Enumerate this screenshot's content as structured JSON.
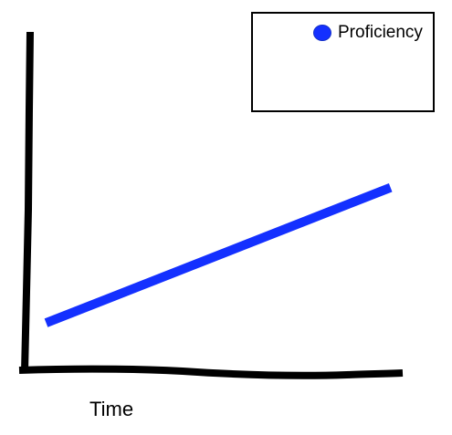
{
  "chart_data": {
    "type": "line",
    "title": "",
    "xlabel": "Time",
    "ylabel": "",
    "x_ticks": false,
    "y_ticks": false,
    "grid": false,
    "legend": {
      "placement": "top-right",
      "boxed": true
    },
    "xlim": [
      0,
      10
    ],
    "ylim": [
      0,
      10
    ],
    "series": [
      {
        "name": "Proficiency",
        "color": "#1430ff",
        "x": [
          0.5,
          9.7
        ],
        "y": [
          1.4,
          5.4
        ]
      }
    ]
  }
}
